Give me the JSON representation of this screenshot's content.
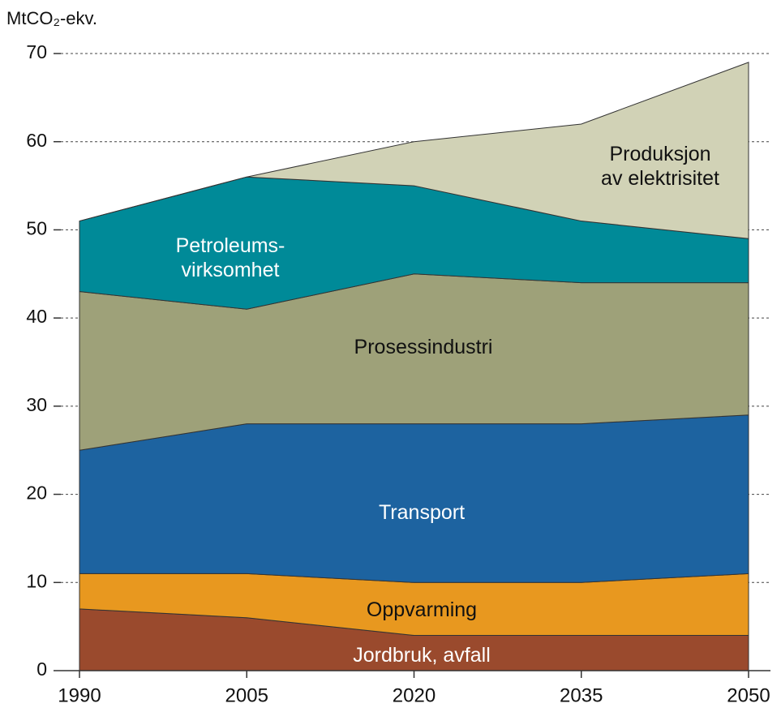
{
  "chart_data": {
    "type": "stacked_area",
    "y_label": "MtCO₂-ekv.",
    "x": [
      1990,
      2005,
      2020,
      2035,
      2050
    ],
    "xlim": [
      1990,
      2050
    ],
    "xticks": [
      1990,
      2005,
      2020,
      2035,
      2050
    ],
    "ylim": [
      0,
      70
    ],
    "yticks": [
      0,
      10,
      20,
      30,
      40,
      50,
      60,
      70
    ],
    "grid": true,
    "series": [
      {
        "name": "Jordbruk, avfall",
        "color": "#9a4a2d",
        "values": [
          7,
          6,
          4,
          4,
          4
        ]
      },
      {
        "name": "Oppvarming",
        "color": "#e8981f",
        "values": [
          4,
          5,
          6,
          6,
          7
        ]
      },
      {
        "name": "Transport",
        "color": "#1d63a0",
        "values": [
          14,
          17,
          18,
          18,
          18
        ]
      },
      {
        "name": "Prosessindustri",
        "color": "#9ea179",
        "values": [
          18,
          13,
          17,
          16,
          15
        ]
      },
      {
        "name": "Petroleums-\nvirksomhet",
        "color": "#008a98",
        "values": [
          8,
          15,
          10,
          7,
          5
        ]
      },
      {
        "name": "Produksjon\nav elektrisitet",
        "color": "#d1d2b6",
        "values": [
          0,
          0,
          5,
          11,
          20
        ]
      }
    ]
  }
}
